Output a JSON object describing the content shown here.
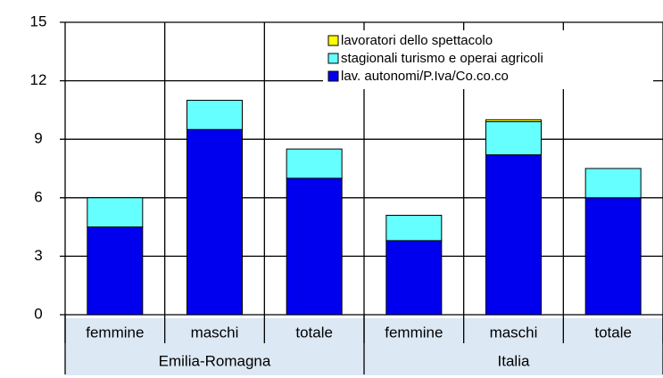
{
  "chart_data": {
    "type": "stacked-bar",
    "categories": [
      "femmine",
      "maschi",
      "totale",
      "femmine",
      "maschi",
      "totale"
    ],
    "groups": [
      "Emilia-Romagna",
      "Italia"
    ],
    "series": [
      {
        "name": "lav. autonomi/P.Iva/Co.co.co",
        "color": "#0000ee",
        "values": [
          4.5,
          9.5,
          7.0,
          3.8,
          8.2,
          6.0
        ]
      },
      {
        "name": "stagionali turismo e operai agricoli",
        "color": "#66ffff",
        "values": [
          1.5,
          1.5,
          1.5,
          1.3,
          1.7,
          1.5
        ]
      },
      {
        "name": "lavoratori dello spettacolo",
        "color": "#ffff00",
        "values": [
          0,
          0,
          0,
          0,
          0.1,
          0
        ]
      }
    ],
    "ylim": [
      0,
      15
    ],
    "yticks": [
      0,
      3,
      6,
      9,
      12,
      15
    ],
    "grid": true
  }
}
